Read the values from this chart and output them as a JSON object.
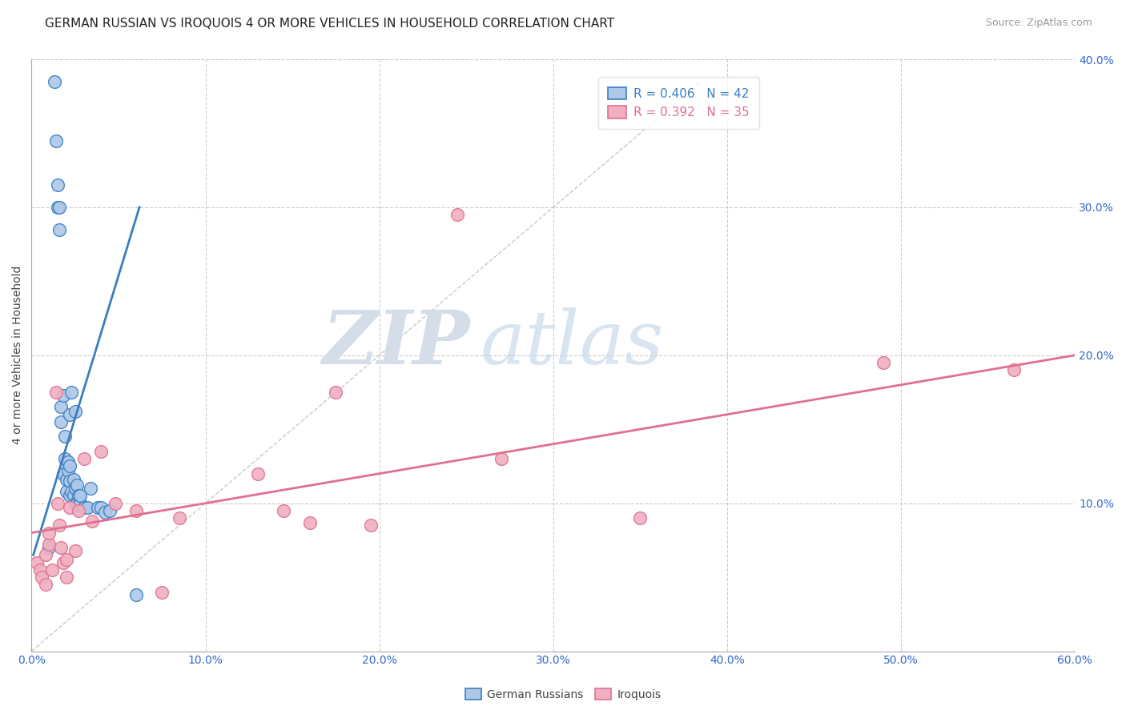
{
  "title": "GERMAN RUSSIAN VS IROQUOIS 4 OR MORE VEHICLES IN HOUSEHOLD CORRELATION CHART",
  "source": "Source: ZipAtlas.com",
  "ylabel_label": "4 or more Vehicles in Household",
  "xmin": 0.0,
  "xmax": 0.6,
  "ymin": 0.0,
  "ymax": 0.4,
  "xticks": [
    0.0,
    0.1,
    0.2,
    0.3,
    0.4,
    0.5,
    0.6
  ],
  "yticks": [
    0.0,
    0.1,
    0.2,
    0.3,
    0.4
  ],
  "xtick_labels": [
    "0.0%",
    "10.0%",
    "20.0%",
    "30.0%",
    "40.0%",
    "50.0%",
    "60.0%"
  ],
  "ytick_labels_right": [
    "",
    "10.0%",
    "20.0%",
    "30.0%",
    "40.0%"
  ],
  "watermark_zip": "ZIP",
  "watermark_atlas": "atlas",
  "blue_scatter_x": [
    0.01,
    0.013,
    0.014,
    0.015,
    0.015,
    0.016,
    0.016,
    0.017,
    0.017,
    0.018,
    0.018,
    0.019,
    0.019,
    0.02,
    0.02,
    0.021,
    0.021,
    0.022,
    0.022,
    0.022,
    0.022,
    0.023,
    0.023,
    0.024,
    0.024,
    0.025,
    0.025,
    0.025,
    0.026,
    0.026,
    0.027,
    0.027,
    0.028,
    0.028,
    0.03,
    0.032,
    0.034,
    0.038,
    0.04,
    0.042,
    0.045,
    0.06
  ],
  "blue_scatter_y": [
    0.07,
    0.385,
    0.345,
    0.315,
    0.3,
    0.285,
    0.3,
    0.155,
    0.165,
    0.173,
    0.12,
    0.13,
    0.145,
    0.108,
    0.116,
    0.122,
    0.128,
    0.105,
    0.115,
    0.125,
    0.16,
    0.175,
    0.108,
    0.105,
    0.116,
    0.1,
    0.11,
    0.162,
    0.1,
    0.112,
    0.098,
    0.105,
    0.1,
    0.105,
    0.097,
    0.097,
    0.11,
    0.097,
    0.097,
    0.094,
    0.095,
    0.038
  ],
  "pink_scatter_x": [
    0.003,
    0.005,
    0.006,
    0.008,
    0.008,
    0.01,
    0.01,
    0.012,
    0.014,
    0.015,
    0.016,
    0.017,
    0.018,
    0.02,
    0.02,
    0.022,
    0.025,
    0.027,
    0.03,
    0.035,
    0.04,
    0.048,
    0.06,
    0.075,
    0.085,
    0.13,
    0.145,
    0.16,
    0.175,
    0.195,
    0.245,
    0.27,
    0.35,
    0.49,
    0.565
  ],
  "pink_scatter_y": [
    0.06,
    0.055,
    0.05,
    0.045,
    0.065,
    0.072,
    0.08,
    0.055,
    0.175,
    0.1,
    0.085,
    0.07,
    0.06,
    0.062,
    0.05,
    0.097,
    0.068,
    0.095,
    0.13,
    0.088,
    0.135,
    0.1,
    0.095,
    0.04,
    0.09,
    0.12,
    0.095,
    0.087,
    0.175,
    0.085,
    0.295,
    0.13,
    0.09,
    0.195,
    0.19
  ],
  "blue_line_x": [
    0.001,
    0.062
  ],
  "blue_line_y": [
    0.065,
    0.3
  ],
  "pink_line_x": [
    0.0,
    0.6
  ],
  "pink_line_y": [
    0.08,
    0.2
  ],
  "diag_line_x": [
    0.0,
    0.385
  ],
  "diag_line_y": [
    0.0,
    0.385
  ],
  "blue_color": "#3a7ebf",
  "pink_color": "#e07090",
  "blue_scatter_facecolor": "#adc8e8",
  "pink_scatter_facecolor": "#f0b0c0",
  "grid_color": "#cccccc",
  "background_color": "#ffffff",
  "title_fontsize": 11,
  "axis_label_fontsize": 10,
  "tick_fontsize": 10,
  "legend_fontsize": 11,
  "source_fontsize": 9
}
